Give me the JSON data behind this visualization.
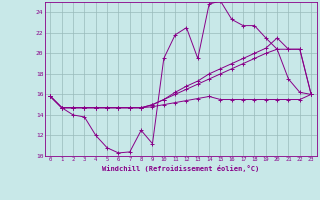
{
  "xlabel": "Windchill (Refroidissement éolien,°C)",
  "bg_color": "#c8e8e8",
  "line_color": "#880088",
  "grid_color": "#99bbbb",
  "xlim": [
    -0.5,
    23.5
  ],
  "ylim": [
    10,
    25
  ],
  "xticks": [
    0,
    1,
    2,
    3,
    4,
    5,
    6,
    7,
    8,
    9,
    10,
    11,
    12,
    13,
    14,
    15,
    16,
    17,
    18,
    19,
    20,
    21,
    22,
    23
  ],
  "yticks": [
    10,
    12,
    14,
    16,
    18,
    20,
    22,
    24
  ],
  "series": [
    [
      15.8,
      14.7,
      14.0,
      13.8,
      12.0,
      10.8,
      10.3,
      10.4,
      12.5,
      11.2,
      19.5,
      21.8,
      22.5,
      19.5,
      24.8,
      25.1,
      23.3,
      22.7,
      22.7,
      21.5,
      20.4,
      17.5,
      16.2,
      16.0
    ],
    [
      15.8,
      14.7,
      14.7,
      14.7,
      14.7,
      14.7,
      14.7,
      14.7,
      14.7,
      15.0,
      15.5,
      16.2,
      16.8,
      17.3,
      18.0,
      18.5,
      19.0,
      19.5,
      20.0,
      20.5,
      21.5,
      20.4,
      20.4,
      16.0
    ],
    [
      15.8,
      14.7,
      14.7,
      14.7,
      14.7,
      14.7,
      14.7,
      14.7,
      14.7,
      15.0,
      15.5,
      16.0,
      16.5,
      17.0,
      17.5,
      18.0,
      18.5,
      19.0,
      19.5,
      20.0,
      20.4,
      20.4,
      20.4,
      16.0
    ],
    [
      15.8,
      14.7,
      14.7,
      14.7,
      14.7,
      14.7,
      14.7,
      14.7,
      14.7,
      14.8,
      15.0,
      15.2,
      15.4,
      15.6,
      15.8,
      15.5,
      15.5,
      15.5,
      15.5,
      15.5,
      15.5,
      15.5,
      15.5,
      16.0
    ]
  ]
}
